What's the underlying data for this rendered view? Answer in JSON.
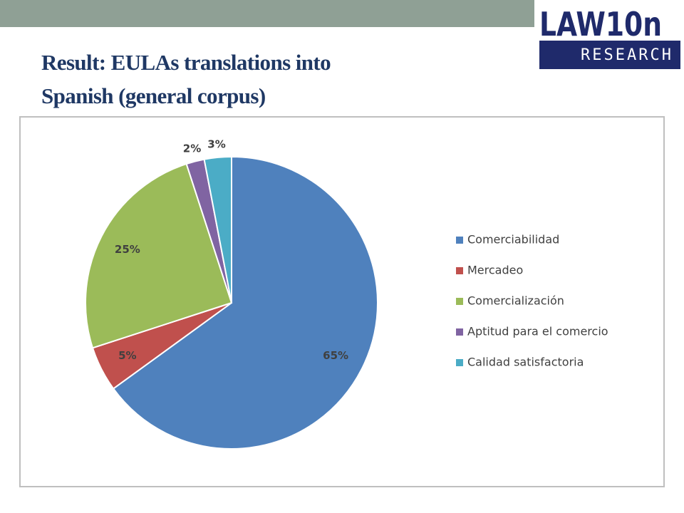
{
  "slide": {
    "title_lines": [
      "Result: EULAs translations into",
      "Spanish (general corpus)"
    ],
    "logo": {
      "name": "LAW10n",
      "tagline": "RESEARCH"
    }
  },
  "chart_data": {
    "type": "pie",
    "categories": [
      "Comerciabilidad",
      "Mercadeo",
      "Comercialización",
      "Aptitud para el comercio",
      "Calidad satisfactoria"
    ],
    "values": [
      65,
      5,
      25,
      2,
      3
    ],
    "value_labels": [
      "65%",
      "5%",
      "25%",
      "2%",
      "3%"
    ],
    "colors": [
      "#4f81bd",
      "#c0504d",
      "#9bbb59",
      "#8064a2",
      "#4bacc6"
    ],
    "legend": "right"
  }
}
